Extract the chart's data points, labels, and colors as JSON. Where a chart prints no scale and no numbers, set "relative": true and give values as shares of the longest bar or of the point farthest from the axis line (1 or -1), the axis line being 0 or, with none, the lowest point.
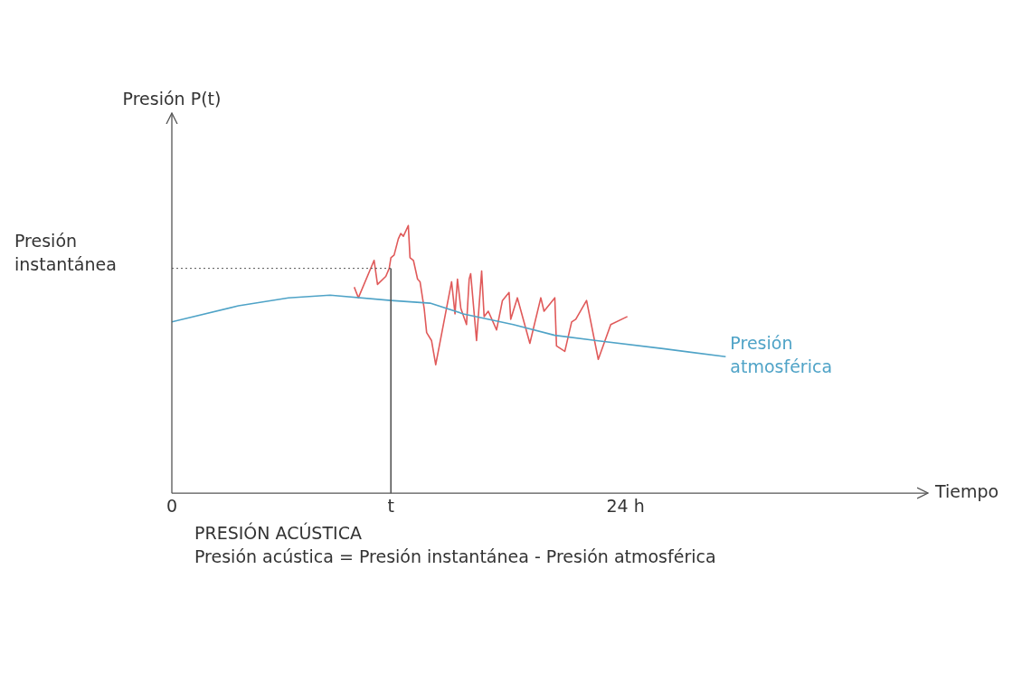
{
  "chart_data": {
    "type": "line",
    "relative": true,
    "xlabel": "Tiempo",
    "xlim": [
      0,
      40
    ],
    "xticks": [
      0,
      {
        "value": 11.59,
        "label": "t"
      },
      {
        "value": 24,
        "label": "24 h"
      }
    ],
    "legend": false,
    "grid": false,
    "marker": "none",
    "line_style": "solid",
    "series": [
      {
        "name": "Presión atmosférica",
        "color": "#4fa3c7",
        "x": [
          0,
          3.52,
          6.17,
          8.37,
          11.59,
          13.66,
          15.42,
          18.06,
          20.26,
          22.47,
          25.99,
          29.3
        ],
        "values": [
          0.64,
          0.7,
          0.73,
          0.74,
          0.72,
          0.71,
          0.67,
          0.63,
          0.59,
          0.57,
          0.54,
          0.51
        ]
      },
      {
        "color": "#e05a5a",
        "x": [
          9.65,
          9.87,
          10.7,
          10.88,
          11.32,
          11.5,
          11.59,
          11.76,
          11.98,
          12.11,
          12.25,
          12.51,
          12.6,
          12.78,
          13,
          13.13,
          13.35,
          13.48,
          13.74,
          13.96,
          14.8,
          14.98,
          15.11,
          15.29,
          15.59,
          15.73,
          15.81,
          16.12,
          16.39,
          16.52,
          16.74,
          17.18,
          17.49,
          17.84,
          17.93,
          18.28,
          18.94,
          19.52,
          19.69,
          20.26,
          20.35,
          20.79,
          21.15,
          21.37,
          21.94,
          22.56,
          23.22,
          24.1
        ],
        "values": [
          0.77,
          0.73,
          0.87,
          0.78,
          0.81,
          0.84,
          0.88,
          0.89,
          0.95,
          0.97,
          0.96,
          1,
          0.88,
          0.87,
          0.8,
          0.79,
          0.69,
          0.6,
          0.57,
          0.48,
          0.79,
          0.67,
          0.8,
          0.69,
          0.63,
          0.8,
          0.82,
          0.57,
          0.83,
          0.66,
          0.68,
          0.61,
          0.72,
          0.75,
          0.65,
          0.73,
          0.56,
          0.73,
          0.68,
          0.73,
          0.55,
          0.53,
          0.64,
          0.65,
          0.72,
          0.5,
          0.63,
          0.66
        ]
      }
    ],
    "ref_lines": [
      {
        "axis": "y",
        "value": 0.84,
        "label": "Presión instantánea",
        "color": "#555555",
        "line_style": "dotted"
      },
      {
        "axis": "x",
        "value": 11.59,
        "color": "#555555",
        "line_style": "solid"
      }
    ],
    "annotations": [
      "Presión P(t)",
      "PRESIÓN ACÚSTICA",
      "Presión acústica = Presión instantánea - Presión atmosférica"
    ]
  }
}
